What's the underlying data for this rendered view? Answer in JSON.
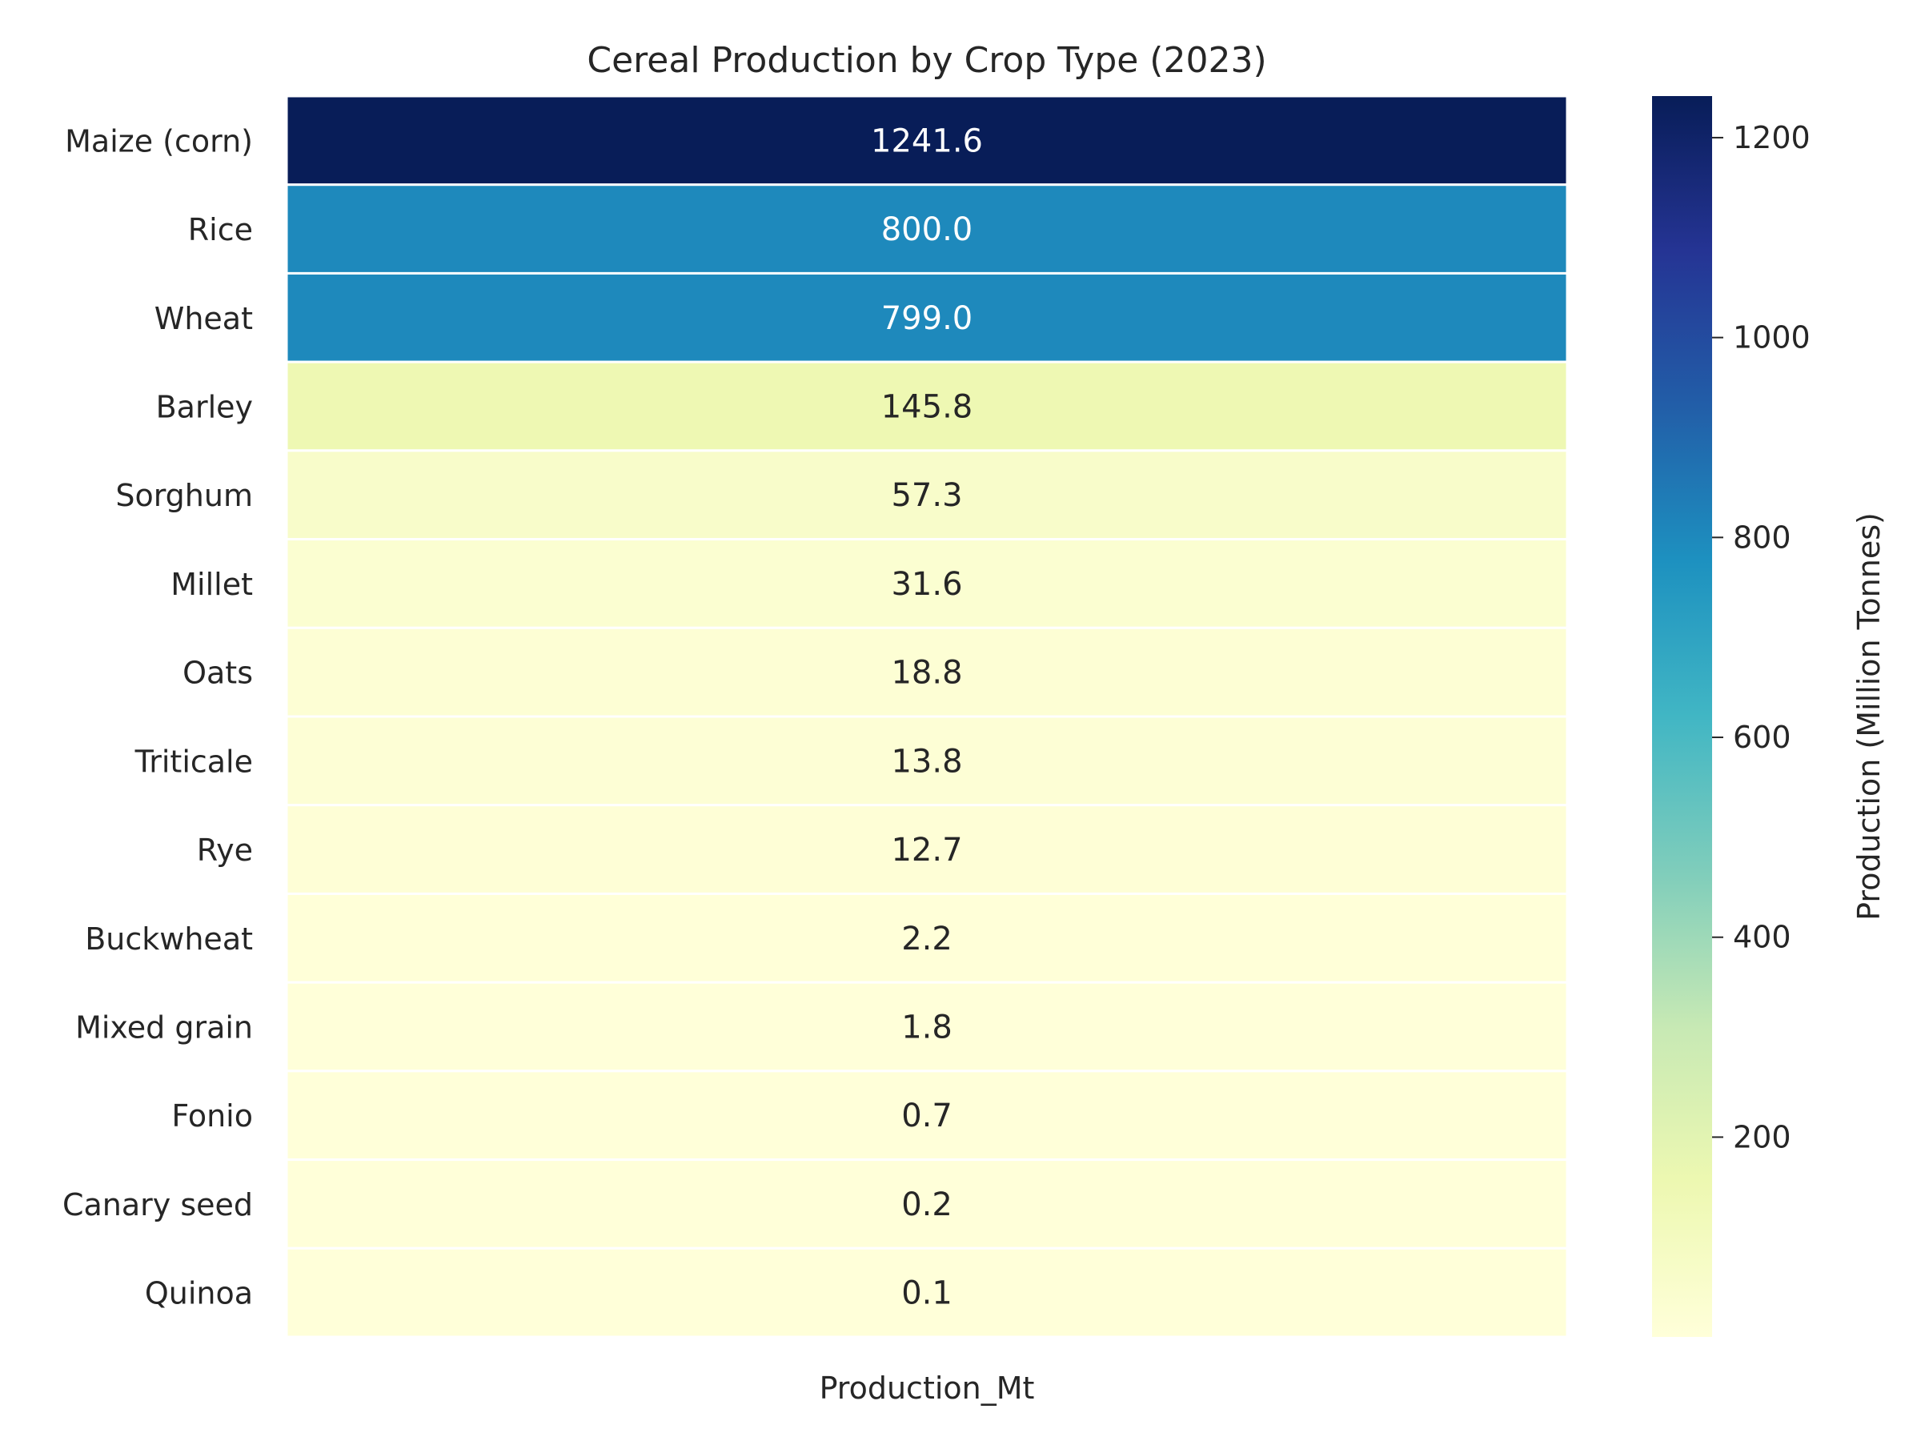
{
  "chart_data": {
    "type": "heatmap",
    "title": "Cereal Production by Crop Type (2023)",
    "xlabel": "",
    "ylabel": "",
    "columns": [
      "Production_Mt"
    ],
    "rows": [
      {
        "label": "Maize (corn)",
        "value": 1241.6,
        "value_label": "1241.6"
      },
      {
        "label": "Rice",
        "value": 800.0,
        "value_label": "800.0"
      },
      {
        "label": "Wheat",
        "value": 799.0,
        "value_label": "799.0"
      },
      {
        "label": "Barley",
        "value": 145.8,
        "value_label": "145.8"
      },
      {
        "label": "Sorghum",
        "value": 57.3,
        "value_label": "57.3"
      },
      {
        "label": "Millet",
        "value": 31.6,
        "value_label": "31.6"
      },
      {
        "label": "Oats",
        "value": 18.8,
        "value_label": "18.8"
      },
      {
        "label": "Triticale",
        "value": 13.8,
        "value_label": "13.8"
      },
      {
        "label": "Rye",
        "value": 12.7,
        "value_label": "12.7"
      },
      {
        "label": "Buckwheat",
        "value": 2.2,
        "value_label": "2.2"
      },
      {
        "label": "Mixed grain",
        "value": 1.8,
        "value_label": "1.8"
      },
      {
        "label": "Fonio",
        "value": 0.7,
        "value_label": "0.7"
      },
      {
        "label": "Canary seed",
        "value": 0.2,
        "value_label": "0.2"
      },
      {
        "label": "Quinoa",
        "value": 0.1,
        "value_label": "0.1"
      }
    ],
    "colorbar": {
      "label": "Production (Million Tonnes)",
      "colormap": "YlGnBu",
      "vmin": 0.1,
      "vmax": 1241.6,
      "ticks": [
        200,
        400,
        600,
        800,
        1000,
        1200
      ],
      "tick_labels": [
        "200",
        "400",
        "600",
        "800",
        "1000",
        "1200"
      ]
    },
    "grid": false
  }
}
